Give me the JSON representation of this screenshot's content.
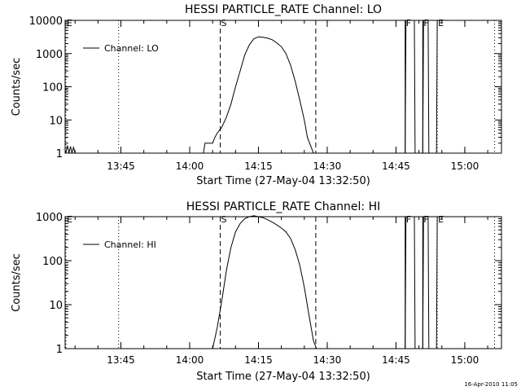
{
  "timestamp": "16-Apr-2010 11:05",
  "chart_data": [
    {
      "type": "line",
      "title": "HESSI PARTICLE_RATE Channel: LO",
      "xlabel": "Start Time (27-May-04 13:32:50)",
      "ylabel": "Counts/sec",
      "y_scale": "log",
      "xlim": [
        "13:32:50",
        "15:08:00"
      ],
      "ylim": [
        1,
        10000
      ],
      "x_ticks": [
        "13:45",
        "14:00",
        "14:15",
        "14:30",
        "14:45",
        "15:00"
      ],
      "y_ticks": [
        "1",
        "10",
        "100",
        "1000",
        "10000"
      ],
      "legend": {
        "position": "top-left",
        "entries": [
          "Channel: LO"
        ]
      },
      "series": [
        {
          "name": "Channel: LO",
          "x": [
            "13:33:00",
            "13:33:20",
            "13:33:40",
            "13:34:00",
            "13:34:20",
            "13:34:40",
            "13:35:00",
            "14:03:00",
            "14:03:20",
            "14:05:00",
            "14:05:30",
            "14:06:00",
            "14:07:00",
            "14:08:00",
            "14:09:00",
            "14:10:00",
            "14:11:00",
            "14:12:00",
            "14:13:00",
            "14:14:00",
            "14:15:00",
            "14:16:00",
            "14:17:00",
            "14:18:00",
            "14:19:00",
            "14:20:00",
            "14:21:00",
            "14:22:00",
            "14:23:00",
            "14:24:00",
            "14:25:00",
            "14:25:40",
            "14:26:30",
            "14:27:00",
            "14:27:30",
            "14:47:00",
            "14:47:10",
            "14:49:00",
            "14:49:10",
            "14:50:50",
            "14:51:00",
            "14:52:00",
            "14:52:10",
            "14:53:50",
            "14:54:00"
          ],
          "values": [
            1,
            1.7,
            1,
            1.6,
            1,
            1.5,
            1,
            1,
            2,
            2,
            3,
            4,
            6,
            12,
            30,
            100,
            300,
            900,
            1800,
            2800,
            3200,
            3100,
            2900,
            2600,
            2100,
            1600,
            1000,
            450,
            150,
            40,
            10,
            3,
            1.5,
            1,
            1,
            1,
            10000,
            10000,
            1,
            1,
            10000,
            10000,
            1,
            1,
            10000
          ]
        }
      ],
      "markers": [
        {
          "label": "E",
          "time": "13:33:00",
          "style": "dotted"
        },
        {
          "label": "",
          "time": "13:44:30",
          "style": "dotted"
        },
        {
          "label": "S",
          "time": "14:06:40",
          "style": "dashed"
        },
        {
          "label": "",
          "time": "14:27:30",
          "style": "dashed"
        },
        {
          "label": "F",
          "time": "14:47:00",
          "style": "solid"
        },
        {
          "label": "F",
          "time": "14:50:50",
          "style": "solid"
        },
        {
          "label": "E",
          "time": "14:54:00",
          "style": "dotted"
        },
        {
          "label": "",
          "time": "15:06:30",
          "style": "dotted"
        }
      ]
    },
    {
      "type": "line",
      "title": "HESSI PARTICLE_RATE Channel: HI",
      "xlabel": "Start Time (27-May-04 13:32:50)",
      "ylabel": "Counts/sec",
      "y_scale": "log",
      "xlim": [
        "13:32:50",
        "15:08:00"
      ],
      "ylim": [
        1,
        1000
      ],
      "x_ticks": [
        "13:45",
        "14:00",
        "14:15",
        "14:30",
        "14:45",
        "15:00"
      ],
      "y_ticks": [
        "1",
        "10",
        "100",
        "1000"
      ],
      "legend": {
        "position": "top-left",
        "entries": [
          "Channel: HI"
        ]
      },
      "series": [
        {
          "name": "Channel: HI",
          "x": [
            "14:05:00",
            "14:06:00",
            "14:07:00",
            "14:08:00",
            "14:09:00",
            "14:10:00",
            "14:11:00",
            "14:12:00",
            "14:13:00",
            "14:14:00",
            "14:15:00",
            "14:16:00",
            "14:17:00",
            "14:18:00",
            "14:19:00",
            "14:20:00",
            "14:21:00",
            "14:22:00",
            "14:23:00",
            "14:24:00",
            "14:25:00",
            "14:26:00",
            "14:27:00",
            "14:27:40",
            "14:47:00",
            "14:47:10",
            "14:49:00",
            "14:49:10",
            "14:50:50",
            "14:51:00",
            "14:52:00",
            "14:52:10",
            "14:53:50",
            "14:54:00"
          ],
          "values": [
            1,
            3,
            12,
            60,
            200,
            450,
            700,
            900,
            1000,
            1050,
            1000,
            950,
            850,
            750,
            650,
            550,
            450,
            320,
            180,
            80,
            25,
            6,
            1.5,
            1,
            1,
            1000,
            1000,
            1,
            1,
            1000,
            1000,
            1,
            1,
            1000
          ]
        }
      ],
      "markers": [
        {
          "label": "E",
          "time": "13:33:00",
          "style": "dotted"
        },
        {
          "label": "",
          "time": "13:44:30",
          "style": "dotted"
        },
        {
          "label": "S",
          "time": "14:06:40",
          "style": "dashed"
        },
        {
          "label": "",
          "time": "14:27:30",
          "style": "dashed"
        },
        {
          "label": "F",
          "time": "14:47:00",
          "style": "solid"
        },
        {
          "label": "F",
          "time": "14:50:50",
          "style": "solid"
        },
        {
          "label": "E",
          "time": "14:54:00",
          "style": "dotted"
        },
        {
          "label": "",
          "time": "15:06:30",
          "style": "dotted"
        }
      ]
    }
  ]
}
